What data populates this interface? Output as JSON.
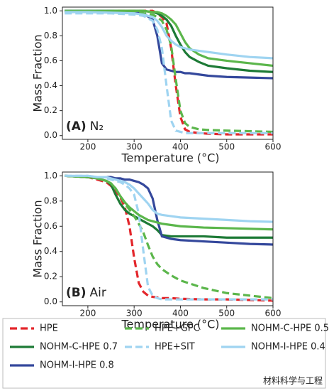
{
  "chart_data": [
    {
      "type": "line",
      "panel_label": "(A)",
      "panel_note": "N₂",
      "x_label": "Temperature (°C)",
      "y_label": "Mass Fraction",
      "xlim": [
        145,
        600
      ],
      "ylim": [
        -0.03,
        1.03
      ],
      "xticks": [
        200,
        300,
        400,
        500,
        600
      ],
      "yticks": [
        {
          "value": 0,
          "label": "0.0"
        },
        0.2,
        0.4,
        0.6,
        0.8,
        {
          "value": 1,
          "label": "1.0"
        }
      ],
      "x": [
        150,
        200,
        250,
        300,
        320,
        340,
        350,
        360,
        370,
        380,
        390,
        400,
        410,
        420,
        440,
        460,
        500,
        550,
        600
      ],
      "series": [
        {
          "name": "HPE",
          "color": "#e3262b",
          "style": "dashed",
          "values": [
            1,
            1,
            1,
            1,
            1,
            1,
            0.98,
            0.95,
            0.9,
            0.7,
            0.4,
            0.15,
            0.05,
            0.03,
            0.02,
            0.015,
            0.01,
            0.01,
            0.01
          ]
        },
        {
          "name": "NOHM-C-HPE 0.7",
          "color": "#1d7a36",
          "style": "solid",
          "values": [
            1,
            1,
            1,
            1,
            1,
            0.99,
            0.98,
            0.96,
            0.93,
            0.88,
            0.8,
            0.73,
            0.67,
            0.63,
            0.59,
            0.56,
            0.54,
            0.52,
            0.51
          ]
        },
        {
          "name": "NOHM-I-HPE 0.8",
          "color": "#34489c",
          "style": "solid",
          "values": [
            1,
            1,
            1,
            0.99,
            0.98,
            0.93,
            0.8,
            0.58,
            0.53,
            0.52,
            0.51,
            0.51,
            0.5,
            0.5,
            0.49,
            0.48,
            0.47,
            0.465,
            0.46
          ]
        },
        {
          "name": "HPE+GPC",
          "color": "#5bb64b",
          "style": "dashed",
          "values": [
            0.99,
            0.99,
            0.99,
            0.99,
            0.98,
            0.97,
            0.95,
            0.92,
            0.85,
            0.72,
            0.45,
            0.2,
            0.1,
            0.07,
            0.05,
            0.045,
            0.04,
            0.035,
            0.03
          ]
        },
        {
          "name": "HPE+SIT",
          "color": "#9fd4f1",
          "style": "dashed",
          "values": [
            0.98,
            0.98,
            0.98,
            0.97,
            0.96,
            0.92,
            0.85,
            0.7,
            0.4,
            0.12,
            0.04,
            0.03,
            0.02,
            0.02,
            0.02,
            0.02,
            0.02,
            0.02,
            0.02
          ]
        },
        {
          "name": "NOHM-C-HPE 0.5",
          "color": "#5bb64b",
          "style": "solid",
          "values": [
            1,
            1,
            1,
            1,
            1,
            0.99,
            0.99,
            0.98,
            0.96,
            0.93,
            0.89,
            0.82,
            0.75,
            0.7,
            0.65,
            0.62,
            0.6,
            0.58,
            0.56
          ]
        },
        {
          "name": "NOHM-I-HPE 0.4",
          "color": "#9fd4f1",
          "style": "solid",
          "values": [
            0.99,
            0.99,
            0.985,
            0.98,
            0.97,
            0.95,
            0.92,
            0.87,
            0.8,
            0.76,
            0.73,
            0.71,
            0.7,
            0.69,
            0.68,
            0.67,
            0.65,
            0.63,
            0.62
          ]
        }
      ]
    },
    {
      "type": "line",
      "panel_label": "(B)",
      "panel_note": "Air",
      "x_label": "Temperature (°C)",
      "y_label": "Mass Fraction",
      "xlim": [
        145,
        600
      ],
      "ylim": [
        -0.03,
        1.03
      ],
      "xticks": [
        200,
        300,
        400,
        500,
        600
      ],
      "yticks": [
        {
          "value": 0,
          "label": "0.0"
        },
        0.2,
        0.4,
        0.6,
        0.8,
        {
          "value": 1,
          "label": "1.0"
        }
      ],
      "x": [
        150,
        200,
        220,
        240,
        250,
        260,
        270,
        280,
        290,
        300,
        310,
        320,
        330,
        340,
        350,
        360,
        380,
        400,
        450,
        500,
        550,
        600
      ],
      "series": [
        {
          "name": "HPE",
          "color": "#e3262b",
          "style": "dashed",
          "values": [
            1,
            0.99,
            0.97,
            0.95,
            0.92,
            0.88,
            0.83,
            0.75,
            0.6,
            0.35,
            0.15,
            0.08,
            0.05,
            0.04,
            0.035,
            0.03,
            0.03,
            0.025,
            0.02,
            0.02,
            0.015,
            0.01
          ]
        },
        {
          "name": "NOHM-C-HPE 0.7",
          "color": "#1d7a36",
          "style": "solid",
          "values": [
            1,
            0.99,
            0.98,
            0.96,
            0.93,
            0.85,
            0.78,
            0.73,
            0.7,
            0.68,
            0.66,
            0.64,
            0.62,
            0.6,
            0.57,
            0.53,
            0.52,
            0.52,
            0.52,
            0.51,
            0.51,
            0.51
          ]
        },
        {
          "name": "NOHM-I-HPE 0.8",
          "color": "#34489c",
          "style": "solid",
          "values": [
            1,
            0.99,
            0.99,
            0.99,
            0.99,
            0.98,
            0.98,
            0.97,
            0.97,
            0.96,
            0.95,
            0.93,
            0.9,
            0.82,
            0.65,
            0.52,
            0.5,
            0.49,
            0.48,
            0.47,
            0.46,
            0.455
          ]
        },
        {
          "name": "HPE+GPC",
          "color": "#5bb64b",
          "style": "dashed",
          "values": [
            1,
            0.99,
            0.98,
            0.96,
            0.94,
            0.9,
            0.84,
            0.78,
            0.73,
            0.68,
            0.62,
            0.55,
            0.45,
            0.36,
            0.3,
            0.26,
            0.21,
            0.17,
            0.11,
            0.07,
            0.05,
            0.03
          ]
        },
        {
          "name": "HPE+SIT",
          "color": "#9fd4f1",
          "style": "dashed",
          "values": [
            1,
            1,
            0.99,
            0.98,
            0.97,
            0.96,
            0.95,
            0.93,
            0.9,
            0.85,
            0.7,
            0.4,
            0.12,
            0.05,
            0.03,
            0.02,
            0.02,
            0.02,
            0.02,
            0.02,
            0.02,
            0.02
          ]
        },
        {
          "name": "NOHM-C-HPE 0.5",
          "color": "#5bb64b",
          "style": "solid",
          "values": [
            1,
            0.99,
            0.98,
            0.96,
            0.94,
            0.9,
            0.84,
            0.79,
            0.75,
            0.72,
            0.69,
            0.67,
            0.65,
            0.64,
            0.63,
            0.62,
            0.61,
            0.6,
            0.59,
            0.585,
            0.58,
            0.575
          ]
        },
        {
          "name": "NOHM-I-HPE 0.4",
          "color": "#9fd4f1",
          "style": "solid",
          "values": [
            1,
            1,
            0.99,
            0.99,
            0.98,
            0.97,
            0.96,
            0.95,
            0.93,
            0.9,
            0.86,
            0.82,
            0.78,
            0.73,
            0.7,
            0.69,
            0.68,
            0.67,
            0.66,
            0.65,
            0.64,
            0.635
          ]
        }
      ]
    }
  ],
  "watermark": "材料科学与工程"
}
